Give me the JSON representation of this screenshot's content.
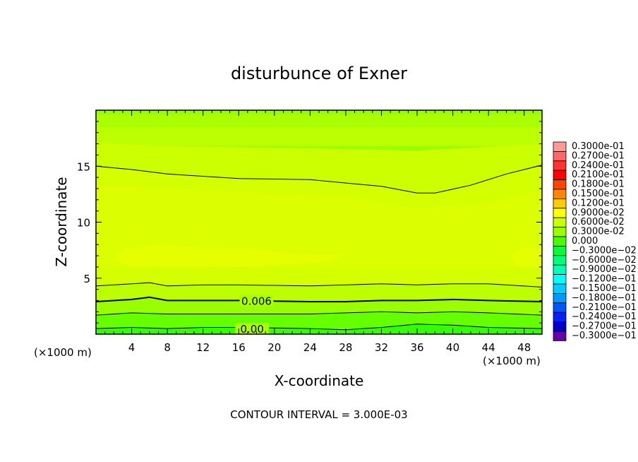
{
  "chart_data": {
    "type": "heatmap",
    "title": "disturbunce of Exner",
    "xlabel": "X-coordinate",
    "ylabel": "Z-coordinate",
    "x_unit_left": "(×1000 m)",
    "x_unit_right": "(×1000 m)",
    "footer": "CONTOUR INTERVAL = 3.000E-03",
    "xlim": [
      0,
      50
    ],
    "ylim": [
      0,
      20
    ],
    "x_ticks": [
      4,
      8,
      12,
      16,
      20,
      24,
      28,
      32,
      36,
      40,
      44,
      48
    ],
    "x_tick_labels": [
      "4",
      "8",
      "12",
      "16",
      "20",
      "24",
      "28",
      "32",
      "36",
      "40",
      "44",
      "48"
    ],
    "y_ticks": [
      5,
      10,
      15
    ],
    "y_tick_labels": [
      "5",
      "10",
      "15"
    ],
    "contour_interval": 0.003,
    "contour_labels": [
      {
        "text": "0.006",
        "x": 18,
        "y": 3
      },
      {
        "text": "0.00",
        "x": 17.5,
        "y": 0.5
      }
    ],
    "contour_lines": [
      {
        "level": "0.009",
        "points": [
          [
            0,
            15.0
          ],
          [
            4,
            14.7
          ],
          [
            8,
            14.3
          ],
          [
            16,
            13.9
          ],
          [
            24,
            13.8
          ],
          [
            32,
            13.2
          ],
          [
            36,
            12.6
          ],
          [
            38,
            12.6
          ],
          [
            42,
            13.3
          ],
          [
            46,
            14.3
          ],
          [
            50,
            15.1
          ]
        ]
      },
      {
        "level": "0.006",
        "points": [
          [
            0,
            4.3
          ],
          [
            4,
            4.5
          ],
          [
            6,
            4.6
          ],
          [
            8,
            4.3
          ],
          [
            12,
            4.4
          ],
          [
            16,
            4.4
          ],
          [
            24,
            4.3
          ],
          [
            28,
            4.4
          ],
          [
            32,
            4.5
          ],
          [
            36,
            4.4
          ],
          [
            40,
            4.5
          ],
          [
            44,
            4.5
          ],
          [
            50,
            4.2
          ]
        ]
      },
      {
        "level": "0.006",
        "points": [
          [
            0,
            2.9
          ],
          [
            4,
            3.1
          ],
          [
            6,
            3.3
          ],
          [
            8,
            3.0
          ],
          [
            12,
            3.0
          ],
          [
            16,
            3.0
          ],
          [
            24,
            2.9
          ],
          [
            28,
            2.9
          ],
          [
            32,
            3.0
          ],
          [
            36,
            3.0
          ],
          [
            40,
            3.1
          ],
          [
            44,
            3.0
          ],
          [
            50,
            2.9
          ]
        ]
      },
      {
        "level": "0.003",
        "points": [
          [
            0,
            1.7
          ],
          [
            4,
            1.9
          ],
          [
            8,
            1.8
          ],
          [
            12,
            1.8
          ],
          [
            16,
            1.8
          ],
          [
            24,
            1.8
          ],
          [
            28,
            1.9
          ],
          [
            32,
            2.0
          ],
          [
            36,
            1.9
          ],
          [
            40,
            2.0
          ],
          [
            44,
            1.9
          ],
          [
            50,
            1.7
          ]
        ]
      },
      {
        "level": "0.000",
        "points": [
          [
            0,
            0.5
          ],
          [
            4,
            0.6
          ],
          [
            8,
            0.5
          ],
          [
            12,
            0.6
          ],
          [
            16,
            0.6
          ],
          [
            24,
            0.5
          ],
          [
            28,
            0.4
          ],
          [
            32,
            0.6
          ],
          [
            36,
            0.9
          ],
          [
            40,
            0.8
          ],
          [
            44,
            0.6
          ],
          [
            50,
            0.5
          ]
        ]
      }
    ],
    "filled_bands": [
      {
        "color": "#99ff00",
        "points": [
          [
            0,
            20
          ],
          [
            50,
            20
          ],
          [
            50,
            0
          ],
          [
            0,
            0
          ]
        ]
      },
      {
        "color": "#aaff00",
        "points": [
          [
            0,
            19.6
          ],
          [
            50,
            19.6
          ],
          [
            50,
            17.6
          ],
          [
            0,
            17.6
          ]
        ]
      },
      {
        "color": "#bbff00",
        "points": [
          [
            0,
            18.5
          ],
          [
            50,
            18.5
          ],
          [
            50,
            16.8
          ],
          [
            0,
            16.8
          ]
        ]
      },
      {
        "color": "#ccff00",
        "points": [
          [
            0,
            17.1
          ],
          [
            8,
            16.8
          ],
          [
            24,
            16.6
          ],
          [
            36,
            16.4
          ],
          [
            50,
            17.0
          ],
          [
            50,
            3.8
          ],
          [
            0,
            3.8
          ]
        ]
      },
      {
        "color": "#d4ff00",
        "points": [
          [
            0,
            15.0
          ],
          [
            4,
            14.7
          ],
          [
            8,
            14.3
          ],
          [
            16,
            13.9
          ],
          [
            24,
            13.8
          ],
          [
            32,
            13.2
          ],
          [
            36,
            12.6
          ],
          [
            38,
            12.6
          ],
          [
            42,
            13.3
          ],
          [
            46,
            14.3
          ],
          [
            50,
            15.1
          ],
          [
            50,
            4.2
          ],
          [
            0,
            4.3
          ]
        ]
      },
      {
        "color": "#dcff00",
        "points": [
          [
            0,
            13.3
          ],
          [
            16,
            12.7
          ],
          [
            28,
            12.3
          ],
          [
            36,
            11.2
          ],
          [
            44,
            11.8
          ],
          [
            50,
            12.8
          ],
          [
            50,
            6.0
          ],
          [
            0,
            6.0
          ]
        ]
      },
      {
        "color": "#e6ff00",
        "points": [
          [
            3,
            7.6
          ],
          [
            8,
            8.0
          ],
          [
            12,
            7.7
          ],
          [
            18,
            7.6
          ],
          [
            22,
            7.2
          ],
          [
            28,
            7.1
          ],
          [
            26,
            6.5
          ],
          [
            18,
            6.1
          ],
          [
            10,
            6.0
          ],
          [
            4,
            6.1
          ],
          [
            2,
            6.6
          ]
        ]
      },
      {
        "color": "#e6ff00",
        "points": [
          [
            48,
            7.8
          ],
          [
            50,
            7.6
          ],
          [
            50,
            5.9
          ],
          [
            47,
            6.2
          ],
          [
            46.5,
            7.0
          ]
        ]
      },
      {
        "color": "#bbff00",
        "points": [
          [
            0,
            4.3
          ],
          [
            4,
            4.5
          ],
          [
            6,
            4.6
          ],
          [
            8,
            4.3
          ],
          [
            12,
            4.4
          ],
          [
            16,
            4.4
          ],
          [
            24,
            4.3
          ],
          [
            28,
            4.4
          ],
          [
            32,
            4.5
          ],
          [
            36,
            4.4
          ],
          [
            40,
            4.5
          ],
          [
            44,
            4.5
          ],
          [
            50,
            4.2
          ],
          [
            50,
            2.9
          ],
          [
            0,
            2.9
          ]
        ]
      },
      {
        "color": "#99ff00",
        "points": [
          [
            0,
            2.9
          ],
          [
            4,
            3.1
          ],
          [
            6,
            3.3
          ],
          [
            8,
            3.0
          ],
          [
            12,
            3.0
          ],
          [
            16,
            3.0
          ],
          [
            24,
            2.9
          ],
          [
            28,
            2.9
          ],
          [
            32,
            3.0
          ],
          [
            36,
            3.0
          ],
          [
            40,
            3.1
          ],
          [
            44,
            3.0
          ],
          [
            50,
            2.9
          ],
          [
            50,
            1.7
          ],
          [
            0,
            1.7
          ]
        ]
      },
      {
        "color": "#66ff00",
        "points": [
          [
            0,
            1.7
          ],
          [
            4,
            1.9
          ],
          [
            8,
            1.8
          ],
          [
            12,
            1.8
          ],
          [
            16,
            1.8
          ],
          [
            24,
            1.8
          ],
          [
            28,
            1.9
          ],
          [
            32,
            2.0
          ],
          [
            36,
            1.9
          ],
          [
            40,
            2.0
          ],
          [
            44,
            1.9
          ],
          [
            50,
            1.7
          ],
          [
            50,
            0.5
          ],
          [
            0,
            0.5
          ]
        ]
      },
      {
        "color": "#33ff00",
        "points": [
          [
            0,
            0.5
          ],
          [
            4,
            0.6
          ],
          [
            8,
            0.5
          ],
          [
            12,
            0.6
          ],
          [
            16,
            0.6
          ],
          [
            24,
            0.5
          ],
          [
            28,
            0.4
          ],
          [
            32,
            0.6
          ],
          [
            36,
            0.9
          ],
          [
            40,
            0.8
          ],
          [
            44,
            0.6
          ],
          [
            50,
            0.5
          ],
          [
            50,
            0
          ],
          [
            0,
            0
          ]
        ]
      }
    ],
    "legend": {
      "placement": "right",
      "entries": [
        {
          "label": "0.3000e-01",
          "color": "#ff9999"
        },
        {
          "label": "0.2700e-01",
          "color": "#ff6666"
        },
        {
          "label": "0.2400e-01",
          "color": "#ff3333"
        },
        {
          "label": "0.2100e-01",
          "color": "#ff0000"
        },
        {
          "label": "0.1800e-01",
          "color": "#ff4400"
        },
        {
          "label": "0.1500e-01",
          "color": "#ff8800"
        },
        {
          "label": "0.1200e-01",
          "color": "#ffcc00"
        },
        {
          "label": "0.9000e-02",
          "color": "#ffff00"
        },
        {
          "label": "0.6000e-02",
          "color": "#ccff00"
        },
        {
          "label": "0.3000e-02",
          "color": "#99ff00"
        },
        {
          "label": "0.000",
          "color": "#44ff00"
        },
        {
          "label": "−0.3000e−02",
          "color": "#00ff33"
        },
        {
          "label": "−0.6000e−02",
          "color": "#00ff77"
        },
        {
          "label": "−0.9000e−02",
          "color": "#00ffbb"
        },
        {
          "label": "−0.1200e−01",
          "color": "#00ffff"
        },
        {
          "label": "−0.1500e−01",
          "color": "#00ccff"
        },
        {
          "label": "−0.1800e−01",
          "color": "#0099ff"
        },
        {
          "label": "−0.2100e−01",
          "color": "#0055ff"
        },
        {
          "label": "−0.2400e−01",
          "color": "#0022ff"
        },
        {
          "label": "−0.2700e−01",
          "color": "#0000cc"
        },
        {
          "label": "−0.3000e−01",
          "color": "#6600aa"
        }
      ]
    }
  }
}
